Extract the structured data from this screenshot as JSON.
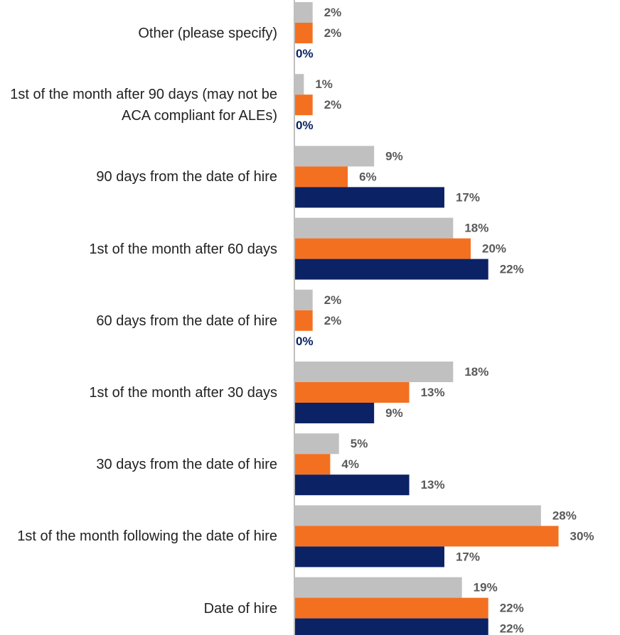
{
  "chart_data": {
    "type": "bar",
    "orientation": "horizontal",
    "categories": [
      "Other (please specify)",
      "1st of the month after 90 days (may not be ACA compliant for ALEs)",
      "90 days from the date of hire",
      "1st of the month after 60 days",
      "60 days from the date of hire",
      "1st of the month after 30 days",
      "30 days from the date of hire",
      "1st of the month following the date of hire",
      "Date of hire"
    ],
    "xlim": [
      0,
      37
    ],
    "series": [
      {
        "color": "#c0c0c0",
        "values": [
          2,
          1,
          9,
          18,
          2,
          18,
          5,
          28,
          19
        ],
        "value_labels": [
          "2%",
          "1%",
          "9%",
          "18%",
          "2%",
          "18%",
          "5%",
          "28%",
          "19%"
        ]
      },
      {
        "color": "#f37021",
        "values": [
          2,
          2,
          6,
          20,
          2,
          13,
          4,
          30,
          22
        ],
        "value_labels": [
          "2%",
          "2%",
          "6%",
          "20%",
          "2%",
          "13%",
          "4%",
          "30%",
          "22%"
        ]
      },
      {
        "color": "#0b2265",
        "values": [
          0,
          0,
          17,
          22,
          0,
          9,
          13,
          17,
          22
        ],
        "value_labels": [
          "0%",
          "0%",
          "17%",
          "22%",
          "0%",
          "9%",
          "13%",
          "17%",
          "22%"
        ]
      }
    ]
  }
}
